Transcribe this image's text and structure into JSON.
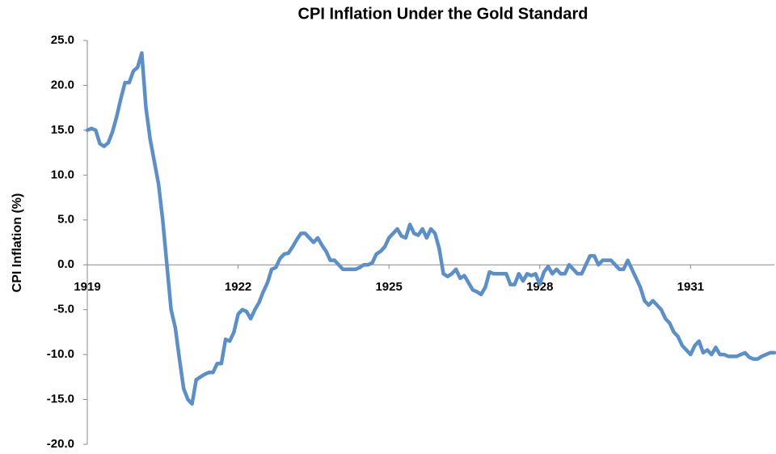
{
  "chart_data": {
    "type": "line",
    "title": "CPI Inflation Under the Gold Standard",
    "y_label": "CPI Inflation (%)",
    "color": "#5b8fc9",
    "grid": false,
    "ylim": [
      -20,
      25
    ],
    "yticks": [
      {
        "value": 25,
        "label": "25.0"
      },
      {
        "value": 20,
        "label": "20.0"
      },
      {
        "value": 15,
        "label": "15.0"
      },
      {
        "value": 10,
        "label": "10.0"
      },
      {
        "value": 5,
        "label": "5.0"
      },
      {
        "value": 0,
        "label": "0.0"
      },
      {
        "value": -5,
        "label": "-5.0"
      },
      {
        "value": -10,
        "label": "-10.0"
      },
      {
        "value": -15,
        "label": "-15.0"
      },
      {
        "value": -20,
        "label": "-20.0"
      }
    ],
    "categories": [
      "1919",
      null,
      null,
      null,
      null,
      null,
      null,
      null,
      null,
      null,
      null,
      null,
      null,
      null,
      null,
      null,
      null,
      null,
      null,
      null,
      null,
      null,
      null,
      null,
      null,
      null,
      null,
      null,
      null,
      null,
      null,
      null,
      null,
      null,
      null,
      null,
      "1922",
      null,
      null,
      null,
      null,
      null,
      null,
      null,
      null,
      null,
      null,
      null,
      null,
      null,
      null,
      null,
      null,
      null,
      null,
      null,
      null,
      null,
      null,
      null,
      null,
      null,
      null,
      null,
      null,
      null,
      null,
      null,
      null,
      null,
      null,
      null,
      "1925",
      null,
      null,
      null,
      null,
      null,
      null,
      null,
      null,
      null,
      null,
      null,
      null,
      null,
      null,
      null,
      null,
      null,
      null,
      null,
      null,
      null,
      null,
      null,
      null,
      null,
      null,
      null,
      null,
      null,
      null,
      null,
      null,
      null,
      null,
      null,
      "1928",
      null,
      null,
      null,
      null,
      null,
      null,
      null,
      null,
      null,
      null,
      null,
      null,
      null,
      null,
      null,
      null,
      null,
      null,
      null,
      null,
      null,
      null,
      null,
      null,
      null,
      null,
      null,
      null,
      null,
      null,
      null,
      null,
      null,
      null,
      null,
      "1931",
      null,
      null,
      null,
      null,
      null,
      null,
      null,
      null,
      null,
      null,
      null,
      null,
      null,
      null,
      null,
      null,
      null,
      null,
      null,
      null
    ],
    "values": [
      15.0,
      15.2,
      15.0,
      13.5,
      13.2,
      13.6,
      14.8,
      16.5,
      18.5,
      20.3,
      20.3,
      21.6,
      22.0,
      23.6,
      17.5,
      14.0,
      11.5,
      9.0,
      5.0,
      0.0,
      -5.0,
      -7.0,
      -10.5,
      -13.8,
      -15.0,
      -15.5,
      -12.8,
      -12.5,
      -12.2,
      -12.0,
      -12.0,
      -11.0,
      -11.0,
      -8.3,
      -8.5,
      -7.5,
      -5.5,
      -5.0,
      -5.2,
      -6.0,
      -5.0,
      -4.2,
      -3.0,
      -2.0,
      -0.5,
      -0.3,
      0.7,
      1.2,
      1.3,
      2.0,
      2.8,
      3.5,
      3.5,
      3.0,
      2.5,
      3.0,
      2.2,
      1.5,
      0.5,
      0.5,
      0.0,
      -0.5,
      -0.5,
      -0.5,
      -0.5,
      -0.3,
      0.0,
      0.0,
      0.2,
      1.2,
      1.5,
      2.0,
      3.0,
      3.5,
      4.0,
      3.2,
      3.0,
      4.5,
      3.5,
      3.3,
      4.0,
      3.0,
      4.0,
      3.5,
      1.8,
      -1.0,
      -1.3,
      -1.0,
      -0.5,
      -1.5,
      -1.2,
      -2.0,
      -2.8,
      -3.0,
      -3.3,
      -2.5,
      -0.8,
      -1.0,
      -1.0,
      -1.0,
      -1.0,
      -2.2,
      -2.2,
      -1.0,
      -1.8,
      -1.0,
      -1.2,
      -1.0,
      -2.2,
      -0.8,
      -0.2,
      -1.0,
      -0.5,
      -1.0,
      -1.0,
      0.0,
      -0.5,
      -1.0,
      -1.0,
      0.0,
      1.0,
      1.0,
      0.0,
      0.5,
      0.5,
      0.5,
      0.0,
      -0.5,
      -0.5,
      0.5,
      -0.5,
      -1.5,
      -2.5,
      -4.0,
      -4.5,
      -4.0,
      -4.5,
      -5.0,
      -6.0,
      -6.5,
      -7.5,
      -8.0,
      -9.0,
      -9.5,
      -10.0,
      -9.0,
      -8.5,
      -9.8,
      -9.5,
      -10.0,
      -9.2,
      -10.0,
      -10.0,
      -10.2,
      -10.2,
      -10.2,
      -10.0,
      -9.8,
      -10.3,
      -10.5,
      -10.5,
      -10.2,
      -10.0,
      -9.8,
      -9.8
    ]
  }
}
